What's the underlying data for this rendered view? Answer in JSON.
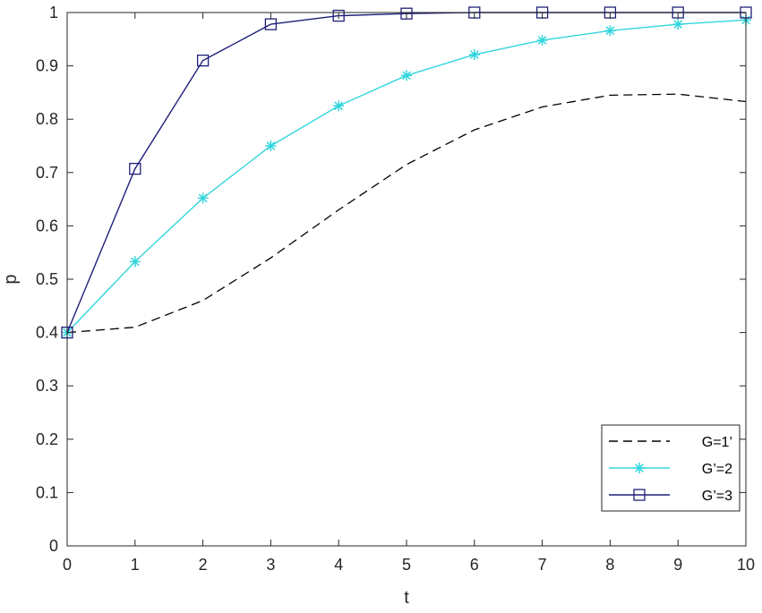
{
  "chart_data": {
    "type": "line",
    "title": "",
    "xlabel": "t",
    "ylabel": "p",
    "xlim": [
      0,
      10
    ],
    "ylim": [
      0,
      1
    ],
    "x_ticks": [
      "0",
      "1",
      "2",
      "3",
      "4",
      "5",
      "6",
      "7",
      "8",
      "9",
      "10"
    ],
    "y_ticks": [
      "0",
      "0.1",
      "0.2",
      "0.3",
      "0.4",
      "0.5",
      "0.6",
      "0.7",
      "0.8",
      "0.9",
      "1"
    ],
    "grid": false,
    "legend_position": "bottom-right",
    "x": [
      0,
      1,
      2,
      3,
      4,
      5,
      6,
      7,
      8,
      9,
      10
    ],
    "series": [
      {
        "name": "G=1’",
        "color": "#000000",
        "line_style": "dashed",
        "marker": "none",
        "values": [
          0.4,
          0.41,
          0.46,
          0.54,
          0.63,
          0.715,
          0.78,
          0.823,
          0.845,
          0.847,
          0.833
        ]
      },
      {
        "name": "G’=2",
        "color": "#33d6dd",
        "line_style": "solid",
        "marker": "asterisk",
        "values": [
          0.4,
          0.533,
          0.652,
          0.75,
          0.825,
          0.882,
          0.921,
          0.948,
          0.966,
          0.978,
          0.986
        ]
      },
      {
        "name": "G’=3",
        "color": "#1f1f7a",
        "line_style": "solid",
        "marker": "square",
        "values": [
          0.4,
          0.707,
          0.91,
          0.978,
          0.994,
          0.998,
          1.0,
          1.0,
          1.0,
          1.0,
          1.0
        ]
      }
    ]
  }
}
